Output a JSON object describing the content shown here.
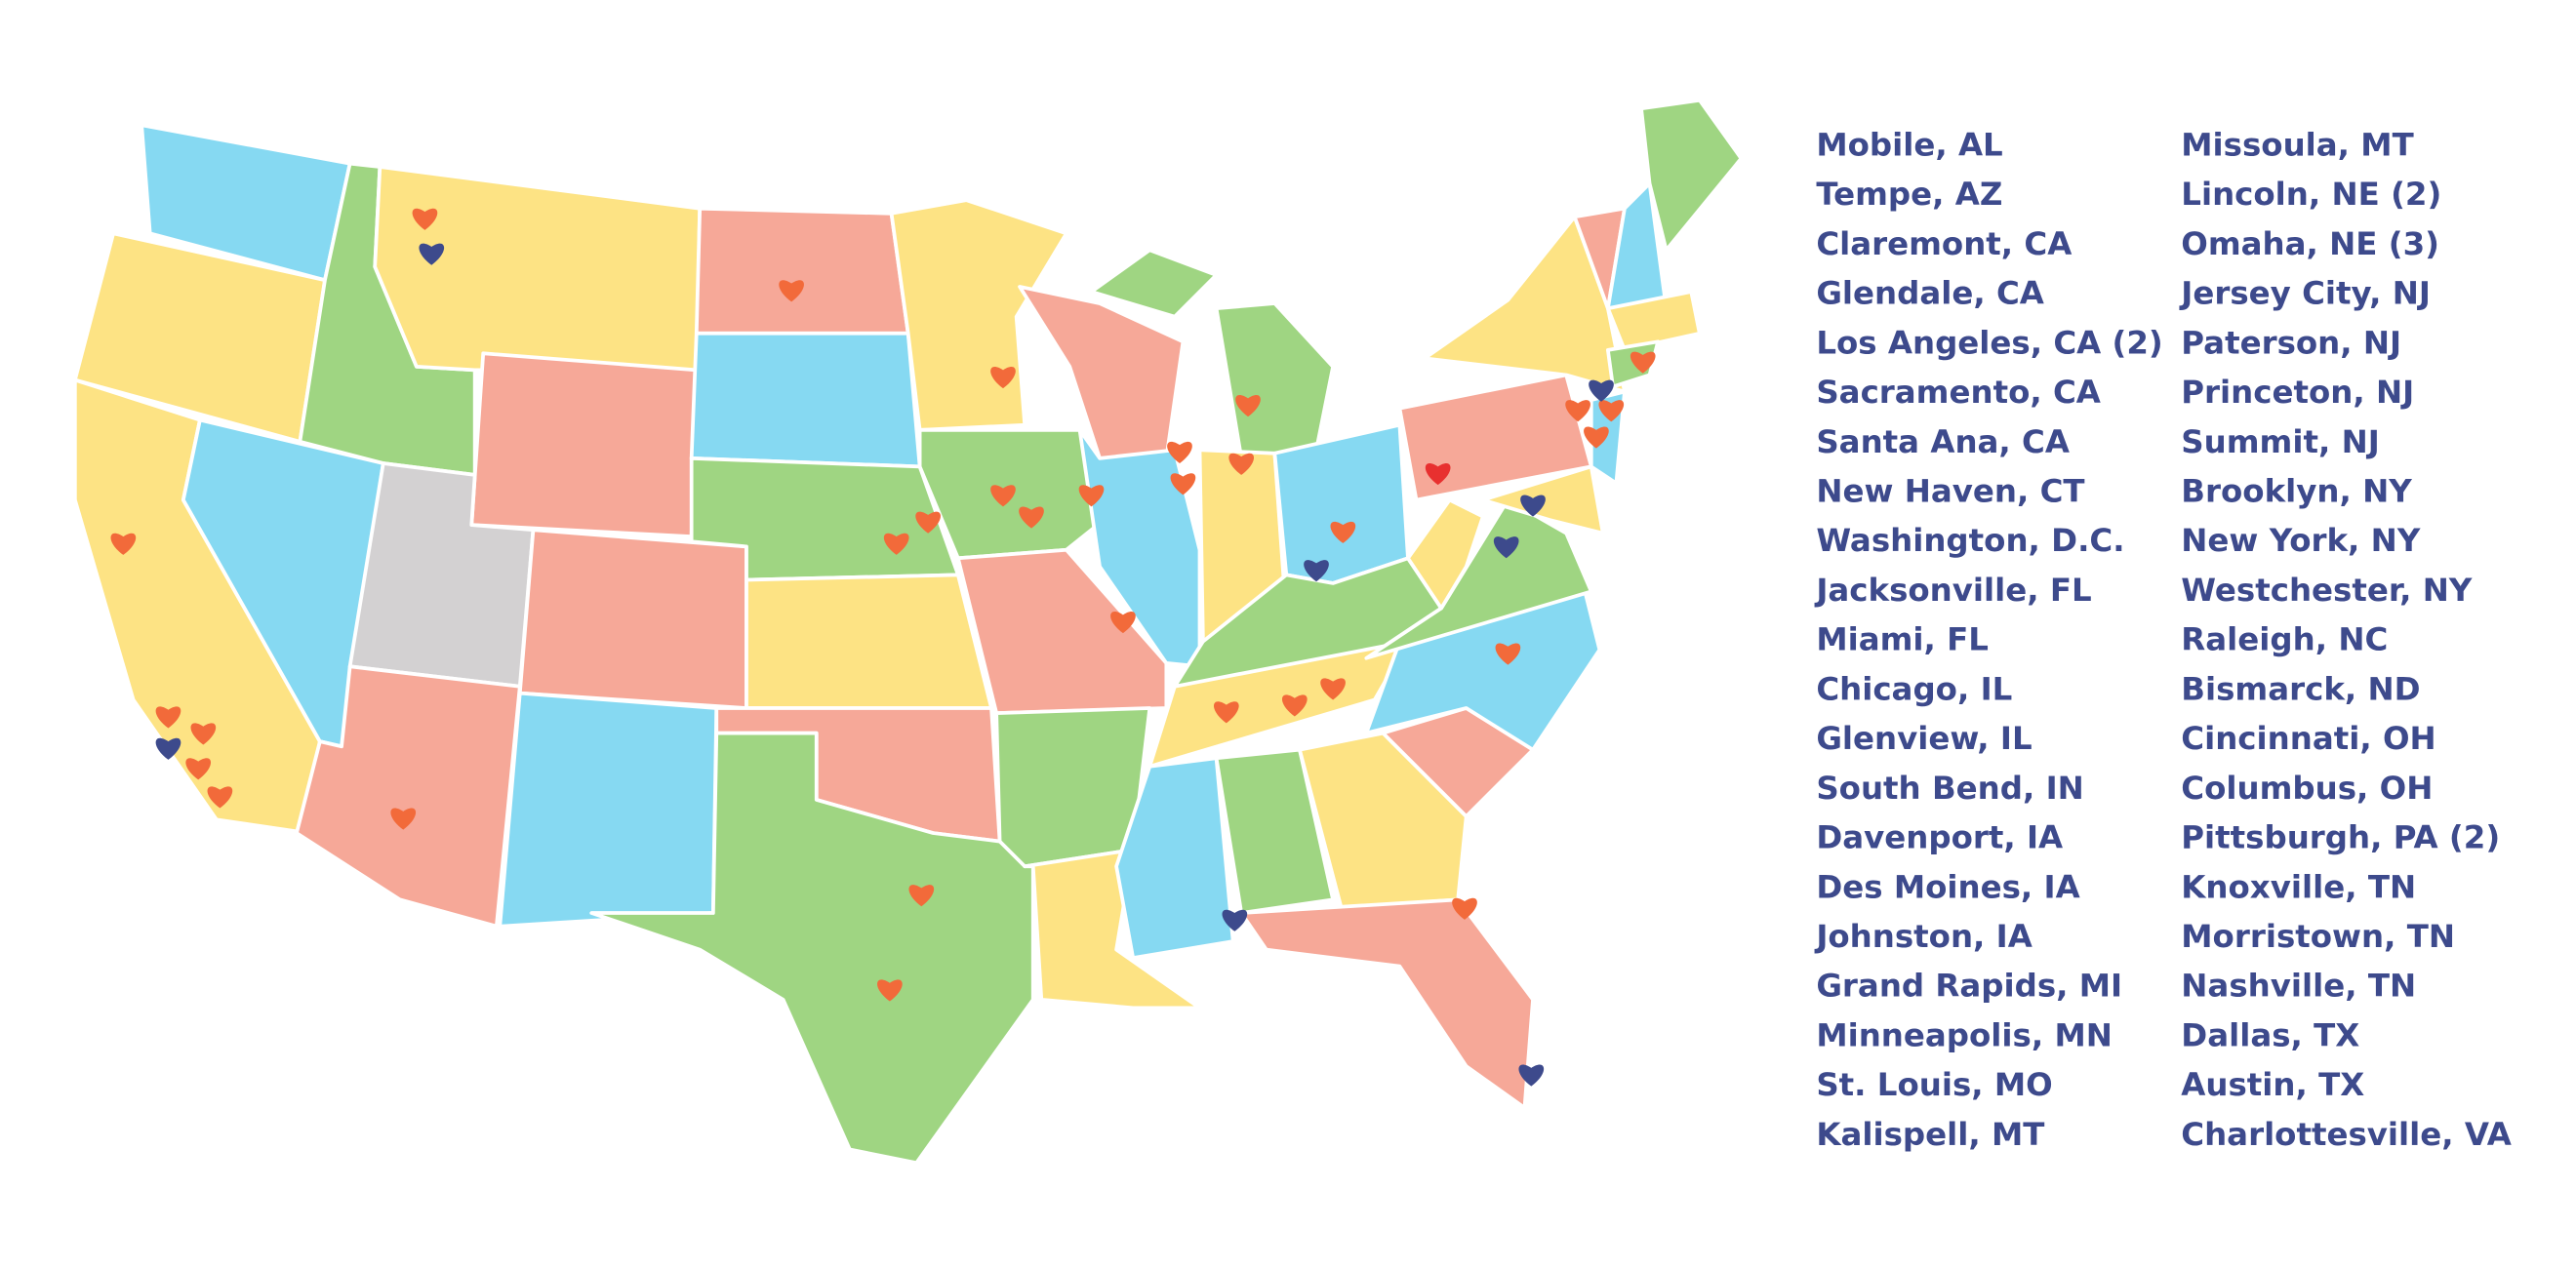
{
  "cities": {
    "column_1": [
      "Mobile, AL",
      "Tempe, AZ",
      "Claremont, CA",
      "Glendale, CA",
      "Los Angeles, CA (2)",
      "Sacramento, CA",
      "Santa Ana, CA",
      "New Haven, CT",
      "Washington, D.C.",
      "Jacksonville, FL",
      "Miami, FL",
      "Chicago, IL",
      "Glenview, IL",
      "South Bend, IN",
      "Davenport, IA",
      "Des Moines, IA",
      "Johnston, IA",
      "Grand Rapids, MI",
      "Minneapolis, MN",
      "St. Louis, MO",
      "Kalispell, MT"
    ],
    "column_2": [
      "Missoula, MT",
      "Lincoln, NE (2)",
      "Omaha, NE (3)",
      "Jersey City, NJ",
      "Paterson, NJ",
      "Princeton, NJ",
      "Summit, NJ",
      "Brooklyn, NY",
      "New York, NY",
      "Westchester, NY",
      "Raleigh, NC",
      "Bismarck, ND",
      "Cincinnati, OH",
      "Columbus, OH",
      "Pittsburgh, PA (2)",
      "Knoxville, TN",
      "Morristown, TN",
      "Nashville, TN",
      "Dallas, TX",
      "Austin, TX",
      "Charlottesville, VA"
    ]
  }
}
